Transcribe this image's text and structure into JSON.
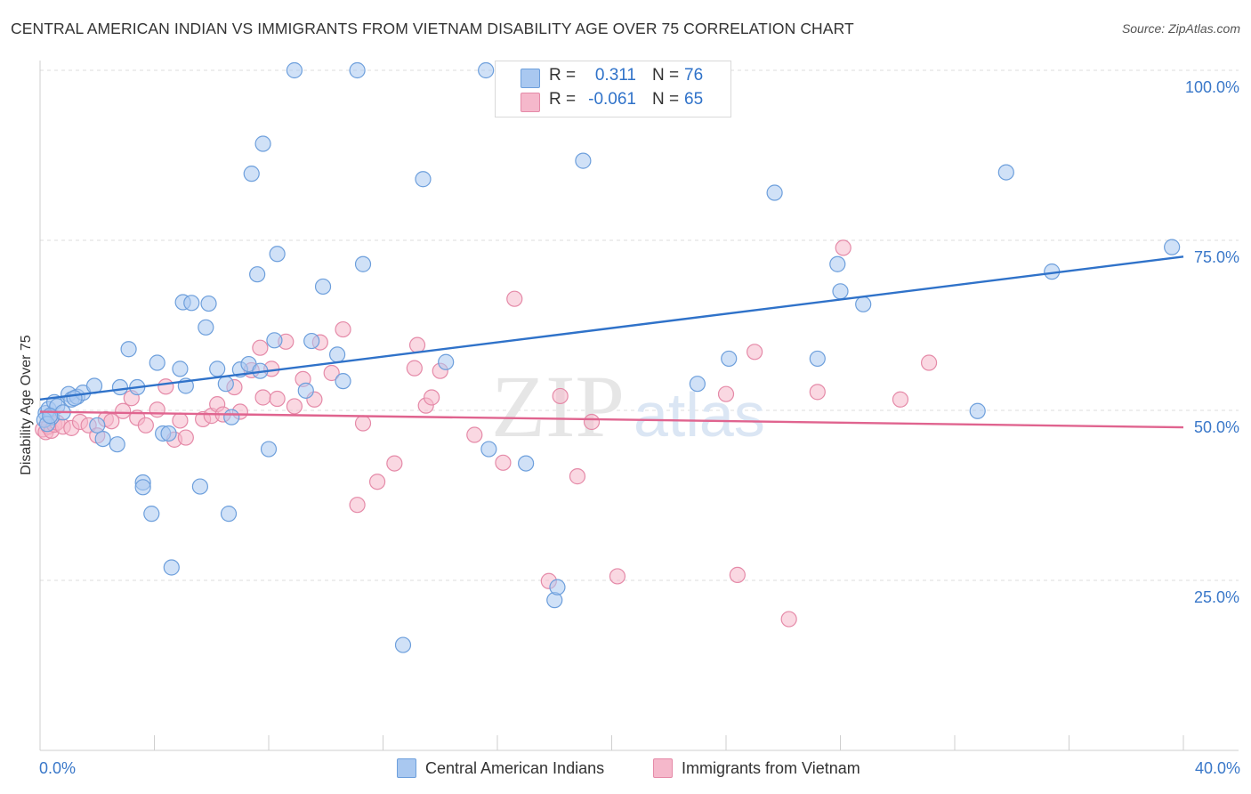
{
  "header": {
    "title": "CENTRAL AMERICAN INDIAN VS IMMIGRANTS FROM VIETNAM DISABILITY AGE OVER 75 CORRELATION CHART",
    "source": "Source: ZipAtlas.com"
  },
  "watermark": {
    "zip": "ZIP",
    "atlas": "atlas"
  },
  "legend": {
    "rows": [
      {
        "r_label": "R =",
        "r_value": "0.311",
        "n_label": "N =",
        "n_value": "76",
        "color": "#a9c8f0"
      },
      {
        "r_label": "R =",
        "r_value": "-0.061",
        "n_label": "N =",
        "n_value": "65",
        "color": "#f5b8cb"
      }
    ]
  },
  "bottom_legend": {
    "items": [
      {
        "label": "Central American Indians",
        "color": "#a9c8f0"
      },
      {
        "label": "Immigrants from Vietnam",
        "color": "#f5b8cb"
      }
    ]
  },
  "colors": {
    "blue_fill": "#a9c8f0",
    "blue_stroke": "#6d9fdc",
    "blue_line": "#2f72c9",
    "pink_fill": "#f5b8cb",
    "pink_stroke": "#e58aa8",
    "pink_line": "#e0648f",
    "axis_label": "#3a78c9",
    "grid": "#dcdcdc"
  },
  "chart_data": {
    "type": "scatter",
    "title": "CENTRAL AMERICAN INDIAN VS IMMIGRANTS FROM VIETNAM DISABILITY AGE OVER 75 CORRELATION CHART",
    "xlabel": "",
    "ylabel": "Disability Age Over 75",
    "xlim": [
      0,
      40
    ],
    "ylim": [
      0,
      100
    ],
    "x_tick_labels": [
      "0.0%",
      "40.0%"
    ],
    "y_ticks": [
      25,
      50,
      75,
      100
    ],
    "y_tick_labels": [
      "25.0%",
      "50.0%",
      "75.0%",
      "100.0%"
    ],
    "grid": true,
    "legend_position": "top-center",
    "series": [
      {
        "name": "Central American Indians",
        "r": 0.311,
        "n": 76,
        "trend": {
          "x": [
            0,
            40
          ],
          "y": [
            51.6,
            72.6
          ]
        },
        "points": [
          [
            0.2,
            49.6
          ],
          [
            0.3,
            50.2
          ],
          [
            0.4,
            49.0
          ],
          [
            0.5,
            51.2
          ],
          [
            0.6,
            50.6
          ],
          [
            0.8,
            49.7
          ],
          [
            1.0,
            52.4
          ],
          [
            1.1,
            51.6
          ],
          [
            1.3,
            52.0
          ],
          [
            1.5,
            52.6
          ],
          [
            1.9,
            53.6
          ],
          [
            2.0,
            47.8
          ],
          [
            2.2,
            45.8
          ],
          [
            2.7,
            45.0
          ],
          [
            2.8,
            53.4
          ],
          [
            3.1,
            59.0
          ],
          [
            3.4,
            53.4
          ],
          [
            3.6,
            39.4
          ],
          [
            3.6,
            38.7
          ],
          [
            3.9,
            34.8
          ],
          [
            4.1,
            57.0
          ],
          [
            4.3,
            46.6
          ],
          [
            4.5,
            46.6
          ],
          [
            4.6,
            26.9
          ],
          [
            4.9,
            56.1
          ],
          [
            5.0,
            65.9
          ],
          [
            5.1,
            53.6
          ],
          [
            5.3,
            65.8
          ],
          [
            5.6,
            38.8
          ],
          [
            5.8,
            62.2
          ],
          [
            5.9,
            65.7
          ],
          [
            6.2,
            56.1
          ],
          [
            6.5,
            53.9
          ],
          [
            6.6,
            34.8
          ],
          [
            6.7,
            49.0
          ],
          [
            7.0,
            56.0
          ],
          [
            7.3,
            56.8
          ],
          [
            7.4,
            84.8
          ],
          [
            7.6,
            70.0
          ],
          [
            7.7,
            55.8
          ],
          [
            7.8,
            89.2
          ],
          [
            8.0,
            44.3
          ],
          [
            8.2,
            60.3
          ],
          [
            8.3,
            73.0
          ],
          [
            8.9,
            100.0
          ],
          [
            9.3,
            52.9
          ],
          [
            9.5,
            60.2
          ],
          [
            9.9,
            68.2
          ],
          [
            10.4,
            58.2
          ],
          [
            10.6,
            54.3
          ],
          [
            11.1,
            100.0
          ],
          [
            11.3,
            71.5
          ],
          [
            12.7,
            15.5
          ],
          [
            13.4,
            84.0
          ],
          [
            14.2,
            57.1
          ],
          [
            15.6,
            100.0
          ],
          [
            15.7,
            44.3
          ],
          [
            17.0,
            42.2
          ],
          [
            18.0,
            22.1
          ],
          [
            18.1,
            24.0
          ],
          [
            19.0,
            86.7
          ],
          [
            23.0,
            53.9
          ],
          [
            24.1,
            57.6
          ],
          [
            25.7,
            82.0
          ],
          [
            27.2,
            57.6
          ],
          [
            28.0,
            67.5
          ],
          [
            28.8,
            65.6
          ],
          [
            32.8,
            49.9
          ],
          [
            33.8,
            85.0
          ],
          [
            35.4,
            70.4
          ],
          [
            39.6,
            74.0
          ],
          [
            0.15,
            48.6
          ],
          [
            0.25,
            48.0
          ],
          [
            0.35,
            49.2
          ],
          [
            27.9,
            71.5
          ],
          [
            1.2,
            51.8
          ]
        ]
      },
      {
        "name": "Immigrants from Vietnam",
        "r": -0.061,
        "n": 65,
        "trend": {
          "x": [
            0,
            40
          ],
          "y": [
            49.8,
            47.5
          ]
        },
        "points": [
          [
            0.1,
            47.2
          ],
          [
            0.2,
            46.8
          ],
          [
            0.3,
            47.6
          ],
          [
            0.4,
            47.0
          ],
          [
            0.5,
            47.9
          ],
          [
            0.6,
            48.2
          ],
          [
            0.8,
            47.6
          ],
          [
            1.1,
            47.4
          ],
          [
            1.4,
            48.3
          ],
          [
            1.7,
            47.8
          ],
          [
            2.0,
            46.3
          ],
          [
            2.3,
            48.7
          ],
          [
            2.5,
            48.4
          ],
          [
            2.9,
            49.9
          ],
          [
            3.2,
            51.8
          ],
          [
            3.4,
            48.9
          ],
          [
            3.7,
            47.8
          ],
          [
            4.1,
            50.1
          ],
          [
            4.4,
            53.5
          ],
          [
            4.7,
            45.7
          ],
          [
            4.9,
            48.5
          ],
          [
            5.1,
            46.0
          ],
          [
            5.7,
            48.7
          ],
          [
            6.0,
            49.2
          ],
          [
            6.2,
            50.9
          ],
          [
            6.4,
            49.4
          ],
          [
            6.8,
            53.4
          ],
          [
            7.0,
            49.8
          ],
          [
            7.4,
            55.9
          ],
          [
            7.7,
            59.2
          ],
          [
            7.8,
            51.9
          ],
          [
            8.1,
            56.1
          ],
          [
            8.3,
            51.7
          ],
          [
            8.6,
            60.1
          ],
          [
            8.9,
            50.6
          ],
          [
            9.2,
            54.6
          ],
          [
            9.6,
            51.6
          ],
          [
            9.8,
            60.0
          ],
          [
            10.2,
            55.5
          ],
          [
            10.6,
            61.9
          ],
          [
            11.1,
            36.1
          ],
          [
            11.3,
            48.1
          ],
          [
            11.8,
            39.5
          ],
          [
            12.4,
            42.2
          ],
          [
            13.2,
            59.6
          ],
          [
            13.1,
            56.2
          ],
          [
            13.5,
            50.7
          ],
          [
            13.7,
            51.9
          ],
          [
            14.0,
            55.8
          ],
          [
            15.2,
            46.4
          ],
          [
            16.2,
            42.3
          ],
          [
            16.6,
            66.4
          ],
          [
            17.8,
            24.9
          ],
          [
            18.2,
            52.1
          ],
          [
            18.8,
            40.3
          ],
          [
            19.3,
            48.3
          ],
          [
            20.2,
            25.6
          ],
          [
            24.0,
            52.4
          ],
          [
            24.4,
            25.8
          ],
          [
            25.0,
            58.6
          ],
          [
            26.2,
            19.3
          ],
          [
            27.2,
            52.7
          ],
          [
            28.1,
            73.9
          ],
          [
            30.1,
            51.6
          ],
          [
            31.1,
            57.0
          ]
        ]
      }
    ]
  }
}
